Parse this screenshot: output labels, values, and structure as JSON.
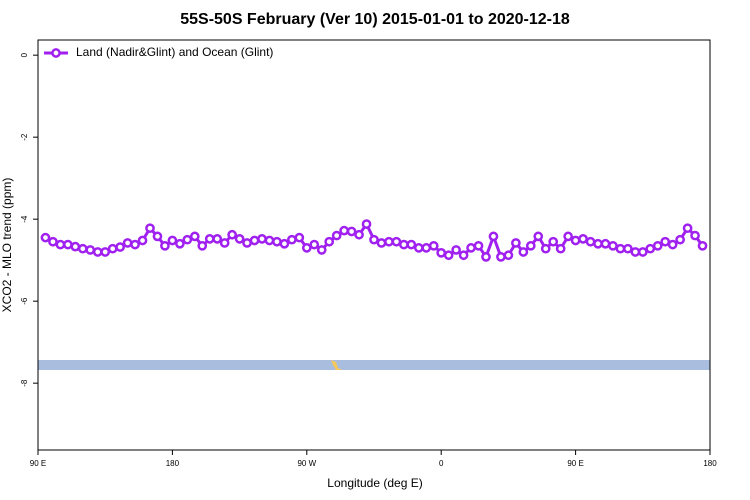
{
  "chart_data": {
    "type": "line",
    "title": "55S-50S February (Ver 10)   2015-01-01 to 2020-12-18",
    "x_label": "Longitude (deg E)",
    "y_label": "XCO2 - MLO trend (ppm)",
    "x": [
      95,
      100,
      105,
      110,
      115,
      120,
      125,
      130,
      135,
      140,
      145,
      150,
      155,
      160,
      165,
      170,
      175,
      180,
      185,
      190,
      195,
      200,
      205,
      210,
      215,
      220,
      225,
      230,
      235,
      240,
      245,
      250,
      255,
      260,
      265,
      270,
      275,
      280,
      285,
      290,
      295,
      300,
      305,
      310,
      315,
      320,
      325,
      330,
      335,
      340,
      345,
      350,
      355,
      360,
      365,
      370,
      375,
      380,
      385,
      390,
      395,
      400,
      405,
      410,
      415,
      420,
      425,
      430,
      435,
      440,
      445,
      450,
      455,
      460,
      465,
      470,
      475,
      480,
      485,
      490,
      495,
      500,
      505,
      510,
      515,
      520,
      525,
      530,
      535
    ],
    "series": [
      {
        "name": "Land (Nadir&Glint) and Ocean (Glint)",
        "color": "#a020f0",
        "values": [
          -4.45,
          -4.55,
          -4.62,
          -4.62,
          -4.67,
          -4.72,
          -4.75,
          -4.8,
          -4.8,
          -4.72,
          -4.68,
          -4.58,
          -4.62,
          -4.52,
          -4.22,
          -4.42,
          -4.65,
          -4.52,
          -4.6,
          -4.5,
          -4.42,
          -4.65,
          -4.48,
          -4.48,
          -4.58,
          -4.38,
          -4.48,
          -4.58,
          -4.52,
          -4.48,
          -4.52,
          -4.55,
          -4.6,
          -4.5,
          -4.45,
          -4.7,
          -4.62,
          -4.75,
          -4.55,
          -4.4,
          -4.28,
          -4.3,
          -4.38,
          -4.12,
          -4.5,
          -4.58,
          -4.55,
          -4.55,
          -4.62,
          -4.62,
          -4.7,
          -4.7,
          -4.65,
          -4.82,
          -4.88,
          -4.75,
          -4.88,
          -4.7,
          -4.65,
          -4.92,
          -4.42,
          -4.92,
          -4.88,
          -4.58,
          -4.8,
          -4.65,
          -4.42,
          -4.72,
          -4.55,
          -4.72,
          -4.42,
          -4.52,
          -4.48,
          -4.55,
          -4.6,
          -4.6,
          -4.65,
          -4.72,
          -4.72,
          -4.8,
          -4.8,
          -4.72,
          -4.65,
          -4.55,
          -4.62,
          -4.5,
          -4.22,
          -4.4,
          -4.65
        ]
      }
    ],
    "xlim": [
      90,
      540
    ],
    "xticks": [
      {
        "value": 90,
        "label": "90 E"
      },
      {
        "value": 180,
        "label": "180"
      },
      {
        "value": 270,
        "label": "90 W"
      },
      {
        "value": 360,
        "label": "0"
      },
      {
        "value": 450,
        "label": "90 E"
      },
      {
        "value": 540,
        "label": "180"
      }
    ],
    "ylim": [
      -9.63,
      0.37
    ],
    "yticks": [
      0,
      -2,
      -4,
      -6,
      -8
    ],
    "legend": "top-left"
  }
}
